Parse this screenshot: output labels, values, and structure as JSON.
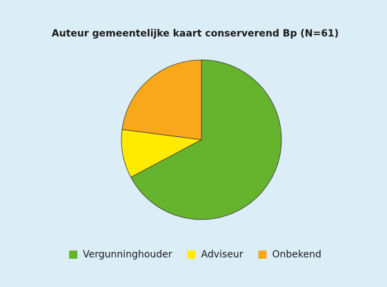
{
  "chart_data": {
    "type": "pie",
    "title": "Auteur gemeentelijke kaart conserverend Bp (N=61)",
    "categories": [
      "Vergunninghouder",
      "Adviseur",
      "Onbekend"
    ],
    "values": [
      41,
      6,
      14
    ],
    "colors": [
      "#66b32e",
      "#ffea00",
      "#f9a81b"
    ],
    "legend": "bottom"
  }
}
